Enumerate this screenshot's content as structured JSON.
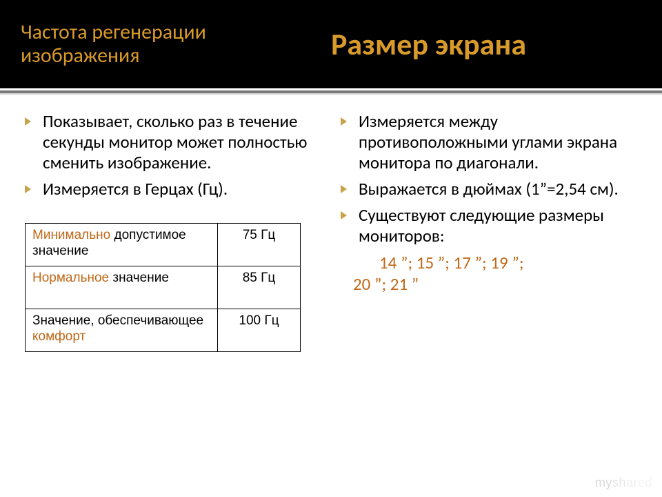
{
  "header": {
    "left": "Частота регенерации изображения",
    "right": "Размер экрана"
  },
  "left_col": {
    "bullets": [
      "Показывает, сколько раз в течение секунды монитор может полностью сменить изображение.",
      "Измеряется в Герцах (Гц)."
    ],
    "table": {
      "rows": [
        {
          "label_pre": "Минимально",
          "label_post": " допустимое значение",
          "value": "75 Гц"
        },
        {
          "label_pre": "Нормальное",
          "label_post": " значение",
          "value": "85 Гц"
        },
        {
          "label_pre_plain": "Значение, обеспечивающее ",
          "label_hl": "комфорт",
          "value": "100 Гц"
        }
      ]
    }
  },
  "right_col": {
    "bullets": [
      "Измеряется между противоположными углами экрана монитора по диагонали.",
      "Выражается в дюймах (1”=2,54 см).",
      "Существуют следующие размеры мониторов:"
    ],
    "sizes_line1": "14 ”; 15 ”; 17 ”; 19 ”;",
    "sizes_line2": "20 ”; 21 ”"
  },
  "watermark": "myshared"
}
